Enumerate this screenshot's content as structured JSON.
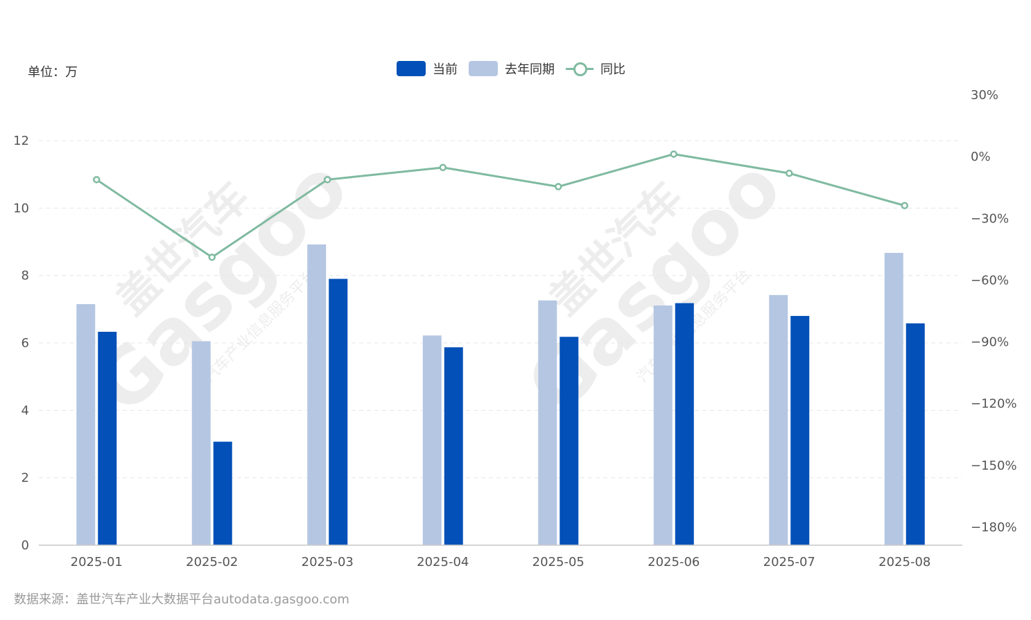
{
  "unit_label": "单位：万",
  "source_text": "数据来源：盖世汽车产业大数据平台autodata.gasgoo.com",
  "watermark": {
    "brand": "盖世汽车",
    "logo_text": "Gasgoo",
    "tagline": "汽车产业信息服务平台"
  },
  "colors": {
    "current": "#0250b8",
    "last_year": "#b4c6e2",
    "yoy": "#7fbaa0",
    "grid": "#e6e6e6"
  },
  "legend": [
    {
      "label": "当前",
      "kind": "bar",
      "color": "#0250b8"
    },
    {
      "label": "去年同期",
      "kind": "bar",
      "color": "#b4c6e2"
    },
    {
      "label": "同比",
      "kind": "line",
      "color": "#7fbaa0"
    }
  ],
  "chart_data": {
    "type": "bar",
    "categories": [
      "2025-01",
      "2025-02",
      "2025-03",
      "2025-04",
      "2025-05",
      "2025-06",
      "2025-07",
      "2025-08"
    ],
    "series": [
      {
        "name": "去年同期",
        "type": "bar",
        "axis": "left",
        "values": [
          7.15,
          6.05,
          8.92,
          6.22,
          7.26,
          7.11,
          7.42,
          8.67
        ]
      },
      {
        "name": "当前",
        "type": "bar",
        "axis": "left",
        "values": [
          6.33,
          3.07,
          7.9,
          5.87,
          6.18,
          7.18,
          6.8,
          6.58
        ]
      },
      {
        "name": "同比",
        "type": "line",
        "axis": "right",
        "values": [
          -11.5,
          -49.2,
          -11.5,
          -5.6,
          -14.9,
          0.9,
          -8.4,
          -24.1
        ]
      }
    ],
    "left_axis": {
      "ticks": [
        0,
        2,
        4,
        6,
        8,
        10,
        12
      ],
      "ylim": [
        0,
        12
      ]
    },
    "right_axis": {
      "ticks": [
        "30%",
        "0%",
        "−30%",
        "−60%",
        "−90%",
        "−120%",
        "−150%",
        "−180%"
      ],
      "ylim": [
        -180,
        30
      ]
    },
    "grid": true,
    "legend_position": "top-center"
  }
}
